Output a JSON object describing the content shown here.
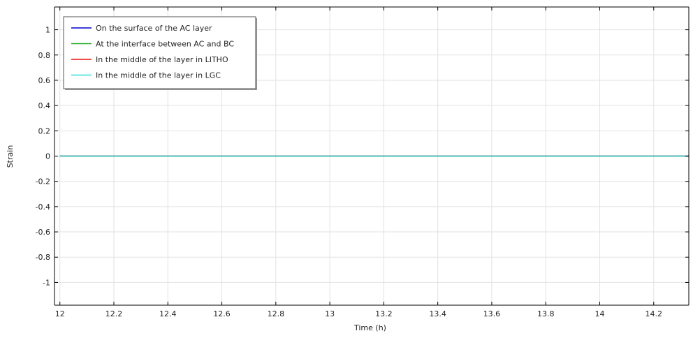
{
  "chart_data": {
    "type": "line",
    "xlabel": "Time (h)",
    "ylabel": "Strain",
    "xlim": [
      11.98,
      14.33
    ],
    "ylim": [
      -1.18,
      1.18
    ],
    "x_ticks": [
      "12",
      "12.2",
      "12.4",
      "12.6",
      "12.8",
      "13",
      "13.2",
      "13.4",
      "13.6",
      "13.8",
      "14",
      "14.2"
    ],
    "y_ticks": [
      "1",
      "0.8",
      "0.6",
      "0.4",
      "0.2",
      "0",
      "-0.2",
      "-0.4",
      "-0.6",
      "-0.8",
      "-1"
    ],
    "grid": true,
    "legend_position": "top-left",
    "series": [
      {
        "name": "On the surface of the AC layer",
        "color": "#0000cc",
        "x": [
          12.0,
          14.33
        ],
        "y": [
          0,
          0
        ]
      },
      {
        "name": "At the interface between AC and BC",
        "color": "#22aa22",
        "x": [
          12.0,
          14.33
        ],
        "y": [
          0,
          0
        ]
      },
      {
        "name": "In the middle of the layer in LITHO",
        "color": "#ee1111",
        "x": [
          12.0,
          14.33
        ],
        "y": [
          0,
          0
        ]
      },
      {
        "name": "In the middle of the layer in LGC",
        "color": "#33dddd",
        "x": [
          12.0,
          14.33
        ],
        "y": [
          0,
          0
        ]
      }
    ]
  }
}
